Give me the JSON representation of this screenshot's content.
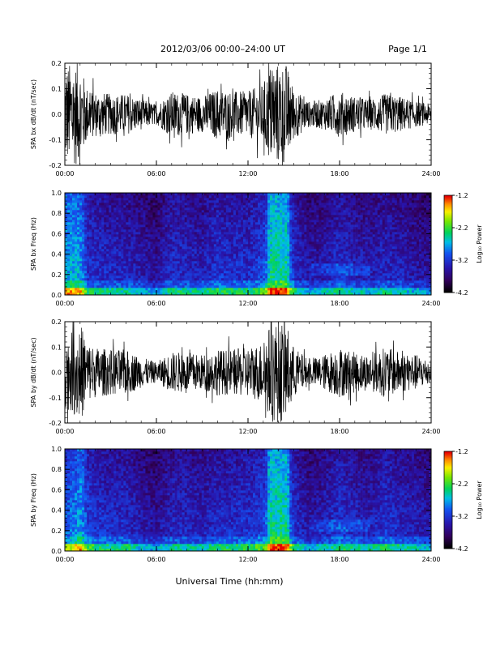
{
  "header": {
    "title": "2012/03/06  00:00–24:00 UT",
    "page": "Page 1/1"
  },
  "footer": {
    "xlabel": "Universal Time (hh:mm)"
  },
  "colorbar": {
    "label": "Log₁₀ Power",
    "ticks": [
      "-1.2",
      "-2.2",
      "-3.2",
      "-4.2"
    ],
    "range": [
      -4.2,
      -1.2
    ]
  },
  "chart_data": [
    {
      "type": "line",
      "ylabel": "SPA bx dB/dt (nT/sec)",
      "xlim": [
        0,
        24
      ],
      "ylim": [
        -0.2,
        0.2
      ],
      "xticks": [
        "00:00",
        "06:00",
        "12:00",
        "18:00",
        "24:00"
      ],
      "yticks": [
        "-0.2",
        "-0.1",
        "0.0",
        "0.1",
        "0.2"
      ],
      "envelope": {
        "x_hours": [
          0,
          0.5,
          1.0,
          1.5,
          2,
          3,
          4,
          5,
          6,
          7,
          8,
          9,
          10,
          11,
          12,
          13,
          13.5,
          14,
          14.5,
          15,
          16,
          17,
          18,
          19,
          20,
          21,
          22,
          23,
          24
        ],
        "amplitude": [
          0.2,
          0.2,
          0.2,
          0.1,
          0.09,
          0.08,
          0.08,
          0.06,
          0.04,
          0.09,
          0.08,
          0.07,
          0.1,
          0.09,
          0.09,
          0.12,
          0.2,
          0.2,
          0.2,
          0.1,
          0.05,
          0.06,
          0.09,
          0.07,
          0.06,
          0.08,
          0.07,
          0.05,
          0.04
        ]
      }
    },
    {
      "type": "heatmap",
      "ylabel": "SPA bx Freq (Hz)",
      "xlim": [
        0,
        24
      ],
      "ylim": [
        0,
        1.0
      ],
      "xticks": [
        "00:00",
        "06:00",
        "12:00",
        "18:00",
        "24:00"
      ],
      "yticks": [
        "0.0",
        "0.2",
        "0.4",
        "0.6",
        "0.8",
        "1.0"
      ],
      "zlim": [
        -4.2,
        -1.2
      ]
    },
    {
      "type": "line",
      "ylabel": "SPA by dB/dt (nT/sec)",
      "xlim": [
        0,
        24
      ],
      "ylim": [
        -0.2,
        0.2
      ],
      "xticks": [
        "00:00",
        "06:00",
        "12:00",
        "18:00",
        "24:00"
      ],
      "yticks": [
        "-0.2",
        "-0.1",
        "0.0",
        "0.1",
        "0.2"
      ],
      "envelope": {
        "x_hours": [
          0,
          0.5,
          1.0,
          1.5,
          2,
          3,
          4,
          5,
          6,
          7,
          8,
          9,
          10,
          11,
          12,
          13,
          13.5,
          14,
          14.5,
          15,
          16,
          17,
          18,
          19,
          20,
          21,
          22,
          23,
          24
        ],
        "amplitude": [
          0.14,
          0.16,
          0.2,
          0.12,
          0.1,
          0.09,
          0.09,
          0.06,
          0.04,
          0.08,
          0.08,
          0.07,
          0.09,
          0.09,
          0.1,
          0.12,
          0.2,
          0.2,
          0.2,
          0.1,
          0.05,
          0.07,
          0.1,
          0.08,
          0.07,
          0.1,
          0.08,
          0.07,
          0.05
        ]
      }
    },
    {
      "type": "heatmap",
      "ylabel": "SPA by Freq (Hz)",
      "xlim": [
        0,
        24
      ],
      "ylim": [
        0,
        1.0
      ],
      "xticks": [
        "00:00",
        "06:00",
        "12:00",
        "18:00",
        "24:00"
      ],
      "yticks": [
        "0.0",
        "0.2",
        "0.4",
        "0.6",
        "0.8",
        "1.0"
      ],
      "zlim": [
        -4.2,
        -1.2
      ]
    }
  ]
}
